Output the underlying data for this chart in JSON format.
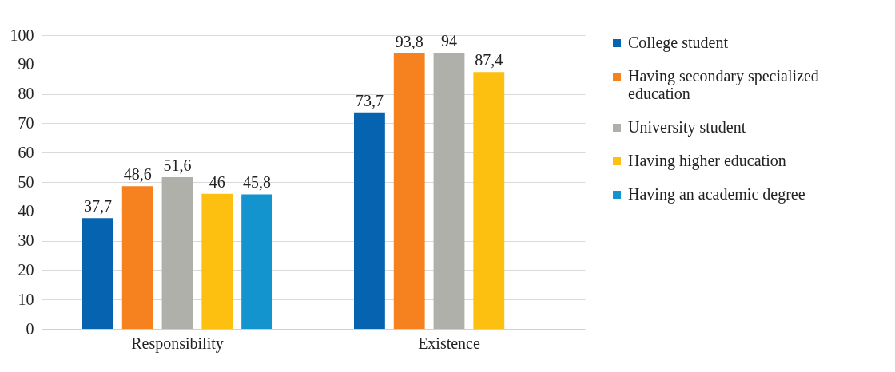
{
  "chart_data": {
    "type": "bar",
    "categories": [
      "Responsibility",
      "Existence"
    ],
    "series": [
      {
        "name": "College student",
        "color": "#0563b0",
        "values": [
          37.7,
          73.7
        ],
        "value_labels": [
          "37,7",
          "73,7"
        ]
      },
      {
        "name": "Having secondary specialized education",
        "color": "#f5821f",
        "values": [
          48.6,
          93.8
        ],
        "value_labels": [
          "48,6",
          "93,8"
        ]
      },
      {
        "name": "University student",
        "color": "#b0b0aa",
        "values": [
          51.6,
          94
        ],
        "value_labels": [
          "51,6",
          "94"
        ]
      },
      {
        "name": "Having higher education",
        "color": "#fdbf10",
        "values": [
          46,
          87.4
        ],
        "value_labels": [
          "46",
          "87,4"
        ]
      },
      {
        "name": "Having an academic degree",
        "color": "#1394cf",
        "values": [
          45.8,
          null
        ],
        "value_labels": [
          "45,8",
          null
        ]
      }
    ],
    "ylim": [
      0,
      100
    ],
    "yticks": [
      0,
      10,
      20,
      30,
      40,
      50,
      60,
      70,
      80,
      90,
      100
    ],
    "grid": "y",
    "legend": "right"
  }
}
